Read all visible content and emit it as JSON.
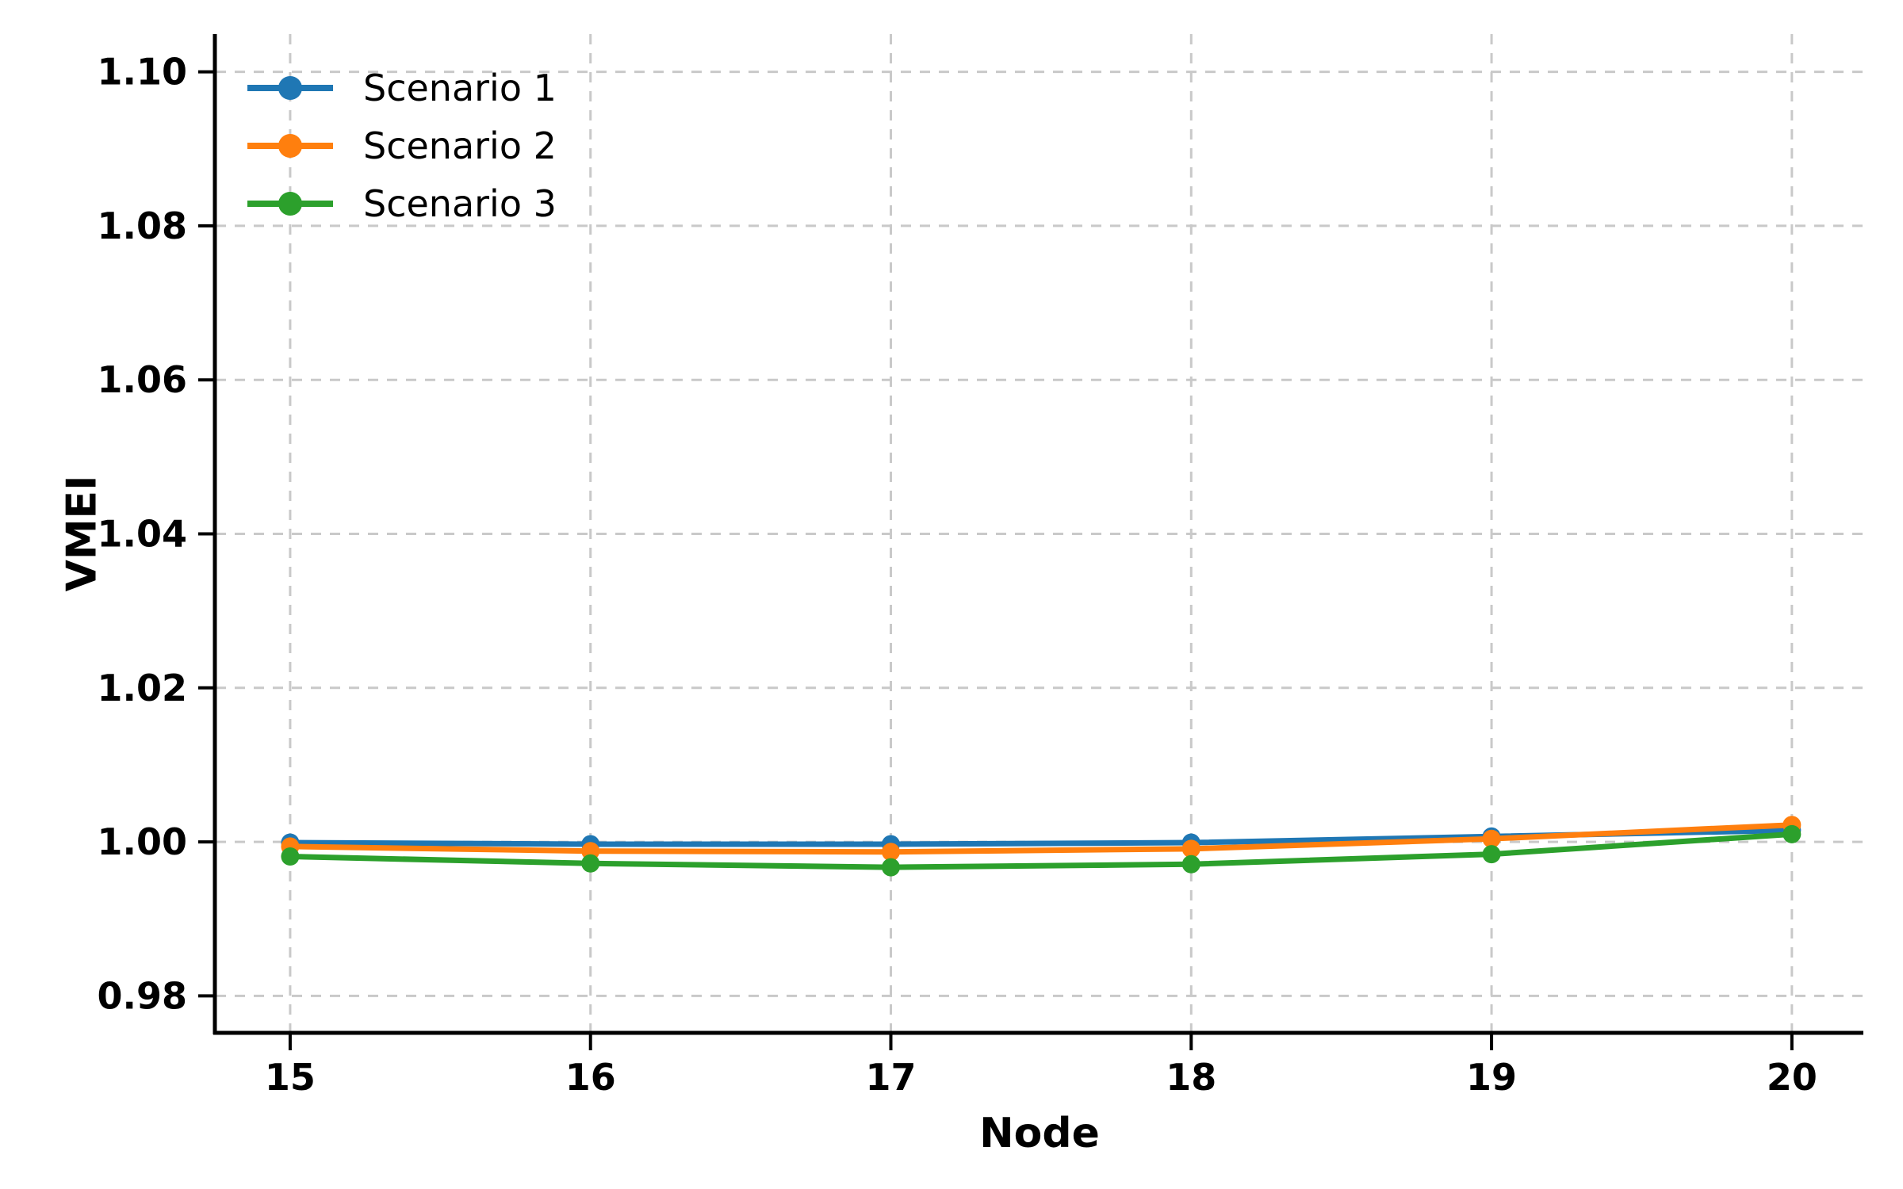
{
  "chart_data": {
    "type": "line",
    "title": "",
    "xlabel": "Node",
    "ylabel": "VMEI",
    "x": [
      15,
      16,
      17,
      18,
      19,
      20
    ],
    "series": [
      {
        "name": "Scenario 1",
        "color": "#1f77b4",
        "values": [
          0.9999,
          0.9997,
          0.9997,
          0.9999,
          1.0007,
          1.0015
        ]
      },
      {
        "name": "Scenario 2",
        "color": "#ff7f0e",
        "values": [
          0.9994,
          0.9988,
          0.9987,
          0.9991,
          1.0004,
          1.0022
        ]
      },
      {
        "name": "Scenario 3",
        "color": "#2ca02c",
        "values": [
          0.9981,
          0.9972,
          0.9967,
          0.9971,
          0.9984,
          1.001
        ]
      }
    ],
    "x_ticks": [
      "15",
      "16",
      "17",
      "18",
      "19",
      "20"
    ],
    "y_ticks": [
      0.98,
      1.0,
      1.02,
      1.04,
      1.06,
      1.08,
      1.1
    ],
    "y_tick_labels": [
      "0.98",
      "1.00",
      "1.02",
      "1.04",
      "1.06",
      "1.08",
      "1.10"
    ],
    "xlim": [
      14.752,
      20.238
    ],
    "ylim": [
      0.9752,
      1.1049
    ],
    "grid": true,
    "grid_style": "dashed",
    "grid_color": "#c9c9c9",
    "axis_color": "#000000",
    "legend_position": "upper left",
    "legend_frame": false
  }
}
